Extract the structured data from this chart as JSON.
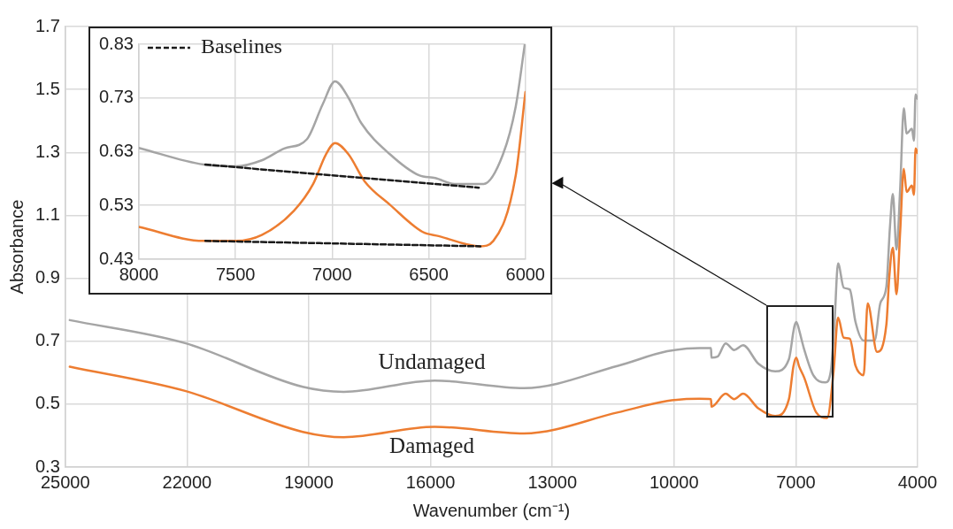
{
  "chart_data": [
    {
      "type": "line",
      "xlabel": "Wavenumber (cm⁻¹)",
      "ylabel": "Absorbance",
      "xlim": [
        25000,
        4000
      ],
      "xticks": [
        25000,
        22000,
        19000,
        16000,
        13000,
        10000,
        7000,
        4000
      ],
      "ylim": [
        0.3,
        1.7
      ],
      "yticks": [
        0.3,
        0.5,
        0.7,
        0.9,
        1.1,
        1.3,
        1.5,
        1.7
      ],
      "grid": true,
      "legend": false,
      "marker": "none",
      "series": [
        {
          "name": "Undamaged",
          "color": "#a5a5a5",
          "x": [
            24890,
            22050,
            19150,
            18140,
            15900,
            13700,
            11380,
            10170,
            9380,
            9090,
            9080,
            8930,
            8730,
            8520,
            8300,
            7920,
            7510,
            7170,
            7060,
            7030,
            6990,
            6950,
            6910,
            6790,
            6570,
            6270,
            6140,
            6050,
            5960,
            5820,
            5670,
            5530,
            5330,
            5060,
            4920,
            4770,
            4680,
            4610,
            4520,
            4430,
            4340,
            4270,
            4140,
            4090,
            4050,
            4000
          ],
          "values": [
            0.767,
            0.694,
            0.555,
            0.539,
            0.575,
            0.551,
            0.622,
            0.668,
            0.678,
            0.678,
            0.648,
            0.651,
            0.693,
            0.672,
            0.687,
            0.628,
            0.604,
            0.643,
            0.731,
            0.75,
            0.761,
            0.75,
            0.731,
            0.672,
            0.592,
            0.569,
            0.604,
            0.752,
            0.947,
            0.87,
            0.864,
            0.761,
            0.702,
            0.702,
            0.82,
            0.873,
            1.065,
            1.168,
            0.991,
            1.183,
            1.44,
            1.36,
            1.375,
            1.337,
            1.484,
            1.47
          ]
        },
        {
          "name": "Damaged",
          "color": "#ed7d31",
          "x": [
            24890,
            22050,
            19150,
            18140,
            15900,
            13700,
            11380,
            10170,
            9380,
            9090,
            9080,
            8730,
            8520,
            8300,
            7920,
            7510,
            7170,
            7060,
            6990,
            6920,
            6790,
            6500,
            6230,
            6070,
            5960,
            5820,
            5670,
            5530,
            5330,
            5230,
            5000,
            4770,
            4700,
            4610,
            4520,
            4430,
            4340,
            4270,
            4140,
            4090,
            4050,
            4000
          ],
          "values": [
            0.619,
            0.542,
            0.412,
            0.395,
            0.428,
            0.407,
            0.474,
            0.51,
            0.517,
            0.516,
            0.492,
            0.533,
            0.516,
            0.533,
            0.486,
            0.462,
            0.516,
            0.62,
            0.648,
            0.62,
            0.583,
            0.474,
            0.456,
            0.604,
            0.775,
            0.711,
            0.708,
            0.622,
            0.592,
            0.82,
            0.666,
            0.752,
            0.9,
            0.997,
            0.849,
            1.047,
            1.248,
            1.174,
            1.195,
            1.165,
            1.313,
            1.298
          ]
        }
      ]
    },
    {
      "type": "line",
      "xlim": [
        8000,
        6000
      ],
      "xticks": [
        8000,
        7500,
        7000,
        6500,
        6000
      ],
      "ylim": [
        0.43,
        0.83
      ],
      "yticks": [
        0.43,
        0.53,
        0.63,
        0.73,
        0.83
      ],
      "grid": true,
      "legend": "top left",
      "marker": "none",
      "series": [
        {
          "color": "#a5a5a5",
          "x": [
            8000,
            7664,
            7498,
            7364,
            7248,
            7131,
            7048,
            6985,
            6915,
            6849,
            6700,
            6550,
            6466,
            6366,
            6216,
            6116,
            6050,
            6003
          ],
          "values": [
            0.637,
            0.606,
            0.603,
            0.614,
            0.636,
            0.653,
            0.719,
            0.761,
            0.73,
            0.683,
            0.625,
            0.586,
            0.581,
            0.57,
            0.57,
            0.625,
            0.714,
            0.83
          ]
        },
        {
          "color": "#ed7d31",
          "x": [
            8000,
            7664,
            7498,
            7364,
            7198,
            7098,
            7032,
            6985,
            6915,
            6832,
            6700,
            6533,
            6449,
            6233,
            6166,
            6050,
            6000
          ],
          "values": [
            0.49,
            0.464,
            0.464,
            0.475,
            0.52,
            0.57,
            0.625,
            0.646,
            0.625,
            0.575,
            0.531,
            0.481,
            0.473,
            0.454,
            0.464,
            0.586,
            0.741
          ]
        },
        {
          "name": "Baselines",
          "color": "#1a1a1a",
          "line_style": "dashed",
          "x": [
            7656,
            6241
          ],
          "values": [
            0.606,
            0.563
          ]
        },
        {
          "color": "#1a1a1a",
          "line_style": "dashed",
          "x": [
            7656,
            6233
          ],
          "values": [
            0.464,
            0.454
          ]
        }
      ]
    }
  ]
}
